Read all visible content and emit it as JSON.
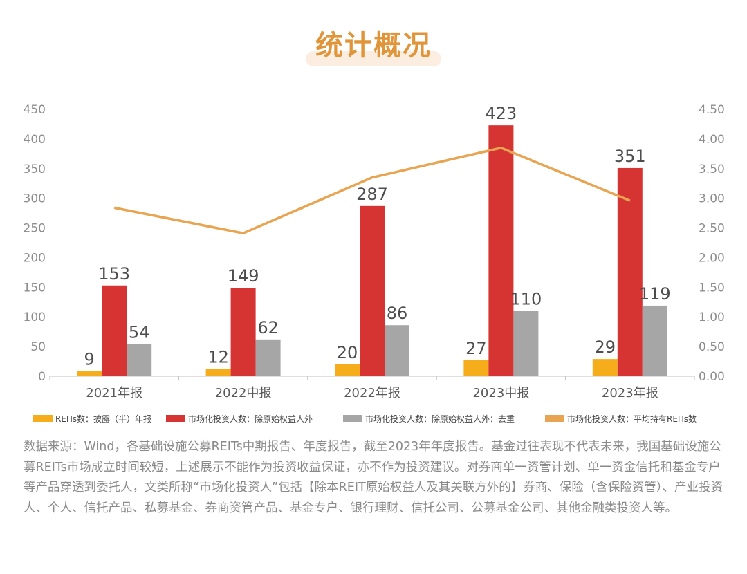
{
  "title": "统计概况",
  "chart_data": {
    "type": "bar+line",
    "categories": [
      "2021年报",
      "2022中报",
      "2022年报",
      "2023中报",
      "2023年报"
    ],
    "series": [
      {
        "name": "REITs数：披露（半）年报",
        "type": "bar",
        "axis": "left",
        "color": "#f5ad1b",
        "values": [
          9,
          12,
          20,
          27,
          29
        ]
      },
      {
        "name": "市场化投资人数：除原始权益人外",
        "type": "bar",
        "axis": "left",
        "color": "#d63333",
        "values": [
          153,
          149,
          287,
          423,
          351
        ]
      },
      {
        "name": "市场化投资人数：除原始权益人外：去重",
        "type": "bar",
        "axis": "left",
        "color": "#a6a6a6",
        "values": [
          54,
          62,
          86,
          110,
          119
        ]
      },
      {
        "name": "市场化投资人数：平均持有REITs数",
        "type": "line",
        "axis": "right",
        "color": "#e8a450",
        "values": [
          2.84,
          2.41,
          3.35,
          3.85,
          2.96
        ]
      }
    ],
    "y_left": {
      "min": 0,
      "max": 450,
      "step": 50,
      "ticks": [
        "0",
        "50",
        "100",
        "150",
        "200",
        "250",
        "300",
        "350",
        "400",
        "450"
      ]
    },
    "y_right": {
      "min": 0,
      "max": 4.5,
      "step": 0.5,
      "ticks": [
        "0.00",
        "0.50",
        "1.00",
        "1.50",
        "2.00",
        "2.50",
        "3.00",
        "3.50",
        "4.00",
        "4.50"
      ]
    },
    "data_labels": [
      [
        "9",
        "153",
        "54"
      ],
      [
        "12",
        "149",
        "62"
      ],
      [
        "20",
        "287",
        "86"
      ],
      [
        "27",
        "423",
        "110"
      ],
      [
        "29",
        "351",
        "119"
      ]
    ],
    "grid": false,
    "legend_position": "bottom"
  },
  "colors": {
    "title": "#e0953a",
    "title_bg": "#fbeee0",
    "axis_text": "#8c8c8c",
    "source_text": "#8a8a8a"
  },
  "source_text": "数据来源：Wind，各基础设施公募REITs中期报告、年度报告，截至2023年年度报告。基金过往表现不代表未来，我国基础设施公募REITs市场成立时间较短，上述展示不能作为投资收益保证，亦不作为投资建议。对券商单一资管计划、单一资金信托和基金专户等产品穿透到委托人，文类所称“市场化投资人”包括【除本REIT原始权益人及其关联方外的】券商、保险（含保险资管）、产业投资人、个人、信托产品、私募基金、券商资管产品、基金专户、银行理财、信托公司、公募基金公司、其他金融类投资人等。"
}
